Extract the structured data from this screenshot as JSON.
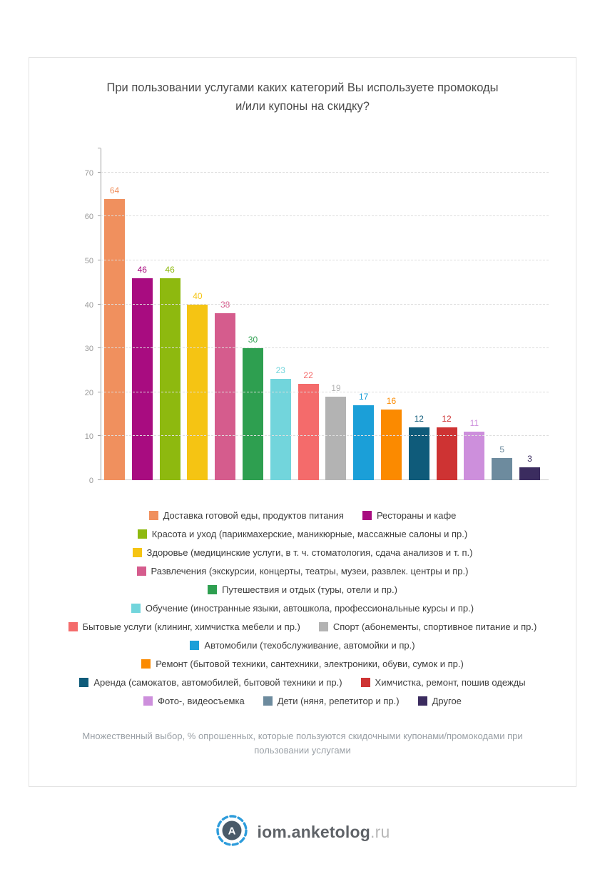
{
  "footnote": "Множественный выбор, % опрошенных, которые пользуются скидочными купонами/промокодами при пользовании услугами",
  "logo": {
    "letter": "А",
    "text_main": "iom.anketolog",
    "text_suffix": ".ru",
    "ring_color": "#2d9cdb",
    "circle_color": "#4a5a68"
  },
  "chart_data": {
    "type": "bar",
    "title": "При пользовании услугами каких категорий Вы используете промокоды и/или купоны на скидку?",
    "xlabel": "",
    "ylabel": "",
    "ylim": [
      0,
      75.5
    ],
    "yticks": [
      0,
      10,
      20,
      30,
      40,
      50,
      60,
      70
    ],
    "grid": "horizontal-dashed",
    "legend_position": "bottom",
    "value_labels": "above-bars-in-bar-color",
    "series": [
      {
        "name": "Доставка готовой еды, продуктов питания",
        "value": 64,
        "color": "#F0905E"
      },
      {
        "name": "Рестораны и кафе",
        "value": 46,
        "color": "#A80C80"
      },
      {
        "name": "Красота и уход (парикмахерские, маникюрные, массажные салоны и пр.)",
        "value": 46,
        "color": "#8EB90F"
      },
      {
        "name": "Здоровье (медицинские услуги, в т. ч. стоматология, сдача анализов и т. п.)",
        "value": 40,
        "color": "#F5C413"
      },
      {
        "name": "Развлечения (экскурсии, концерты, театры, музеи, развлек. центры и пр.)",
        "value": 38,
        "color": "#D55C8D"
      },
      {
        "name": "Путешествия и отдых (туры, отели и пр.)",
        "value": 30,
        "color": "#2E9F50"
      },
      {
        "name": "Обучение (иностранные языки, автошкола, профессиональные курсы и пр.)",
        "value": 23,
        "color": "#72D5DC"
      },
      {
        "name": "Бытовые услуги (клининг, химчистка мебели и пр.)",
        "value": 22,
        "color": "#F46B6B"
      },
      {
        "name": "Спорт (абонементы, спортивное питание и пр.)",
        "value": 19,
        "color": "#B3B3B3"
      },
      {
        "name": "Автомобили (техобслуживание, автомойки и пр.)",
        "value": 17,
        "color": "#1B9FD8"
      },
      {
        "name": "Ремонт (бытовой техники, сантехники, электроники, обуви, сумок и пр.)",
        "value": 16,
        "color": "#FB8A00"
      },
      {
        "name": "Аренда (самокатов, автомобилей, бытовой техники и пр.)",
        "value": 12,
        "color": "#0F5B7A"
      },
      {
        "name": "Химчистка, ремонт, пошив одежды",
        "value": 12,
        "color": "#CE3333"
      },
      {
        "name": "Фото-, видеосъемка",
        "value": 11,
        "color": "#CD8FDC"
      },
      {
        "name": "Дети (няня, репетитор и пр.)",
        "value": 5,
        "color": "#6D8B9E"
      },
      {
        "name": "Другое",
        "value": 3,
        "color": "#3B2C5F"
      }
    ]
  }
}
